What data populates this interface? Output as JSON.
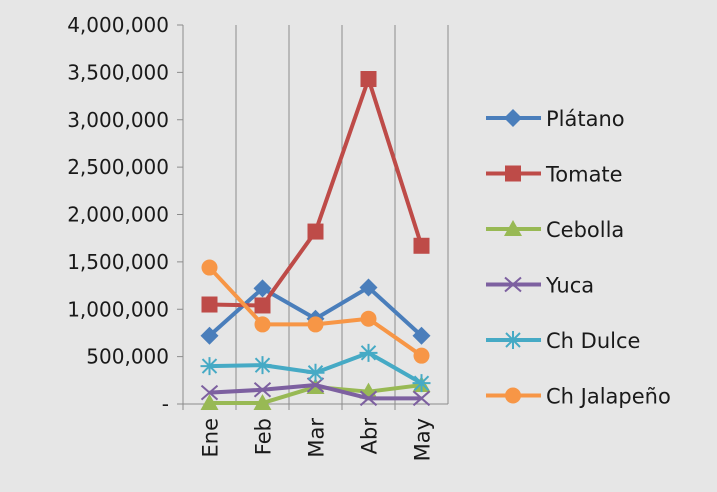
{
  "chart_data": {
    "type": "line",
    "title": "",
    "xlabel": "",
    "ylabel": "",
    "categories": [
      "Ene",
      "Feb",
      "Mar",
      "Abr",
      "May"
    ],
    "ylim": [
      0,
      4000000
    ],
    "yticks": [
      0,
      500000,
      1000000,
      1500000,
      2000000,
      2500000,
      3000000,
      3500000,
      4000000
    ],
    "ytick_labels": [
      "-",
      "500,000",
      "1,000,000",
      "1,500,000",
      "2,000,000",
      "2,500,000",
      "3,000,000",
      "3,500,000",
      "4,000,000"
    ],
    "grid": "vertical",
    "legend_position": "right",
    "series": [
      {
        "name": "Plátano",
        "color": "#4a7ebb",
        "marker": "diamond",
        "values": [
          720000,
          1220000,
          900000,
          1230000,
          720000
        ]
      },
      {
        "name": "Tomate",
        "color": "#be4b48",
        "marker": "square",
        "values": [
          1050000,
          1040000,
          1820000,
          3430000,
          1670000
        ]
      },
      {
        "name": "Cebolla",
        "color": "#98b954",
        "marker": "triangle",
        "values": [
          10000,
          10000,
          180000,
          130000,
          200000
        ]
      },
      {
        "name": "Yuca",
        "color": "#7d60a0",
        "marker": "x",
        "values": [
          120000,
          150000,
          200000,
          60000,
          60000
        ]
      },
      {
        "name": "Ch Dulce",
        "color": "#46aac5",
        "marker": "star",
        "values": [
          400000,
          410000,
          330000,
          540000,
          220000
        ]
      },
      {
        "name": "Ch Jalapeño",
        "color": "#f79646",
        "marker": "circle",
        "values": [
          1440000,
          840000,
          840000,
          900000,
          510000
        ]
      }
    ]
  }
}
